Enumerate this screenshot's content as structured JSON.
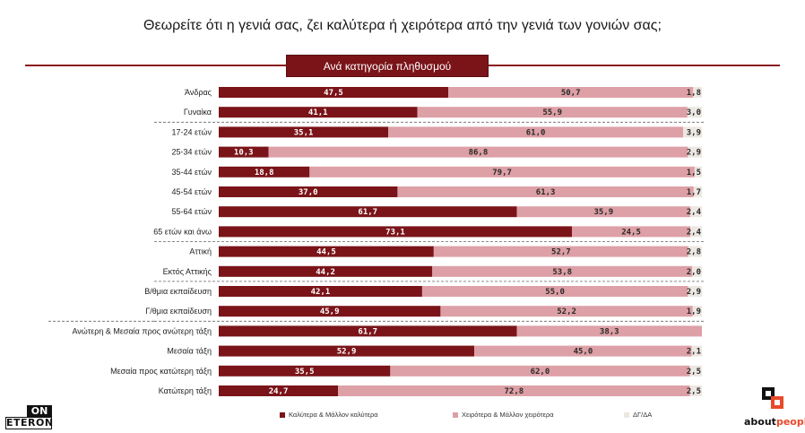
{
  "title": "Θεωρείτε ότι η γενιά σας, ζει καλύτερα ή χειρότερα από την γενιά των γονιών σας;",
  "subtitle": "Ανά κατηγορία πληθυσμού",
  "colors": {
    "better": "#7a1419",
    "worse": "#dda0a6",
    "dk": "#ece7e2",
    "rule": "#8b1a1f"
  },
  "logos": {
    "left_top": "ON",
    "left_bottom": "ETERON",
    "right_word_1": "about",
    "right_word_2": "people"
  },
  "chart_data": {
    "type": "bar",
    "orientation": "horizontal",
    "stacked": true,
    "xlim": [
      0,
      100
    ],
    "grid": false,
    "legend_position": "bottom",
    "categories": [
      "Άνδρας",
      "Γυναίκα",
      "17-24 ετών",
      "25-34 ετών",
      "35-44 ετών",
      "45-54 ετών",
      "55-64 ετών",
      "65 ετών και άνω",
      "Αττική",
      "Εκτός Αττικής",
      "Β/θμια εκπαίδευση",
      "Γ/θμια εκπαίδευση",
      "Ανώτερη & Μεσαία προς ανώτερη τάξη",
      "Μεσαία τάξη",
      "Μεσαία προς κατώτερη τάξη",
      "Κατώτερη τάξη"
    ],
    "series": [
      {
        "name": "Καλύτερα & Μάλλον καλύτερα",
        "values": [
          47.5,
          41.1,
          35.1,
          10.3,
          18.8,
          37.0,
          61.7,
          73.1,
          44.5,
          44.2,
          42.1,
          45.9,
          61.7,
          52.9,
          35.5,
          24.7
        ],
        "labels": [
          "47,5",
          "41,1",
          "35,1",
          "10,3",
          "18,8",
          "37,0",
          "61,7",
          "73,1",
          "44,5",
          "44,2",
          "42,1",
          "45,9",
          "61,7",
          "52,9",
          "35,5",
          "24,7"
        ]
      },
      {
        "name": "Χειρότερα & Μάλλον χειρότερα",
        "values": [
          50.7,
          55.9,
          61.0,
          86.8,
          79.7,
          61.3,
          35.9,
          24.5,
          52.7,
          53.8,
          55.0,
          52.2,
          38.3,
          45.0,
          62.0,
          72.8
        ],
        "labels": [
          "50,7",
          "55,9",
          "61,0",
          "86,8",
          "79,7",
          "61,3",
          "35,9",
          "24,5",
          "52,7",
          "53,8",
          "55,0",
          "52,2",
          "38,3",
          "45,0",
          "62,0",
          "72,8"
        ]
      },
      {
        "name": "ΔΓ/ΔΑ",
        "values": [
          1.8,
          3.0,
          3.9,
          2.9,
          1.5,
          1.7,
          2.4,
          2.4,
          2.8,
          2.0,
          2.9,
          1.9,
          0,
          2.1,
          2.5,
          2.5
        ],
        "labels": [
          "1,8",
          "3,0",
          "3,9",
          "2,9",
          "1,5",
          "1,7",
          "2,4",
          "2,4",
          "2,8",
          "2,0",
          "2,9",
          "1,9",
          "",
          "2,1",
          "2,5",
          "2,5"
        ]
      }
    ]
  }
}
